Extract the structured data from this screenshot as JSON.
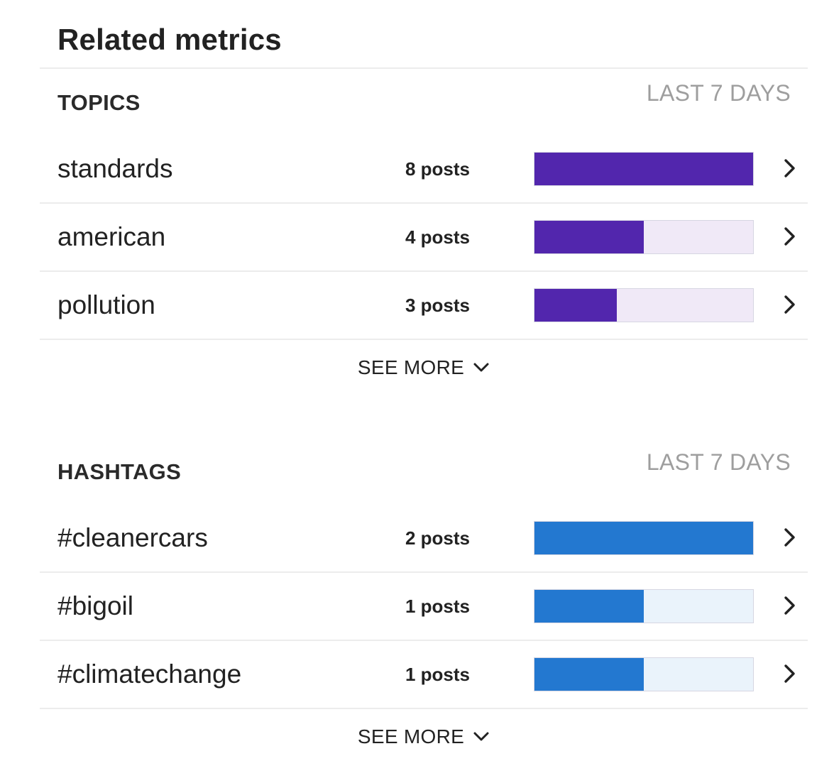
{
  "panel": {
    "title": "Related metrics"
  },
  "topics": {
    "title": "TOPICS",
    "range": "LAST 7 DAYS",
    "color": "#5226ad",
    "track_color": "#f0e9f7",
    "rows": [
      {
        "label": "standards",
        "count": "8 posts",
        "value": 8,
        "fill": 1.0
      },
      {
        "label": "american",
        "count": "4 posts",
        "value": 4,
        "fill": 0.5
      },
      {
        "label": "pollution",
        "count": "3 posts",
        "value": 3,
        "fill": 0.375
      }
    ],
    "see_more": "SEE MORE"
  },
  "hashtags": {
    "title": "HASHTAGS",
    "range": "LAST 7 DAYS",
    "color": "#2378d0",
    "track_color": "#eaf3fb",
    "rows": [
      {
        "label": "#cleanercars",
        "count": "2 posts",
        "value": 2,
        "fill": 1.0
      },
      {
        "label": "#bigoil",
        "count": "1 posts",
        "value": 1,
        "fill": 0.5
      },
      {
        "label": "#climatechange",
        "count": "1 posts",
        "value": 1,
        "fill": 0.5
      }
    ],
    "see_more": "SEE MORE"
  },
  "icons": {
    "row_action": "chevron-right-icon",
    "expand": "chevron-down-icon"
  }
}
